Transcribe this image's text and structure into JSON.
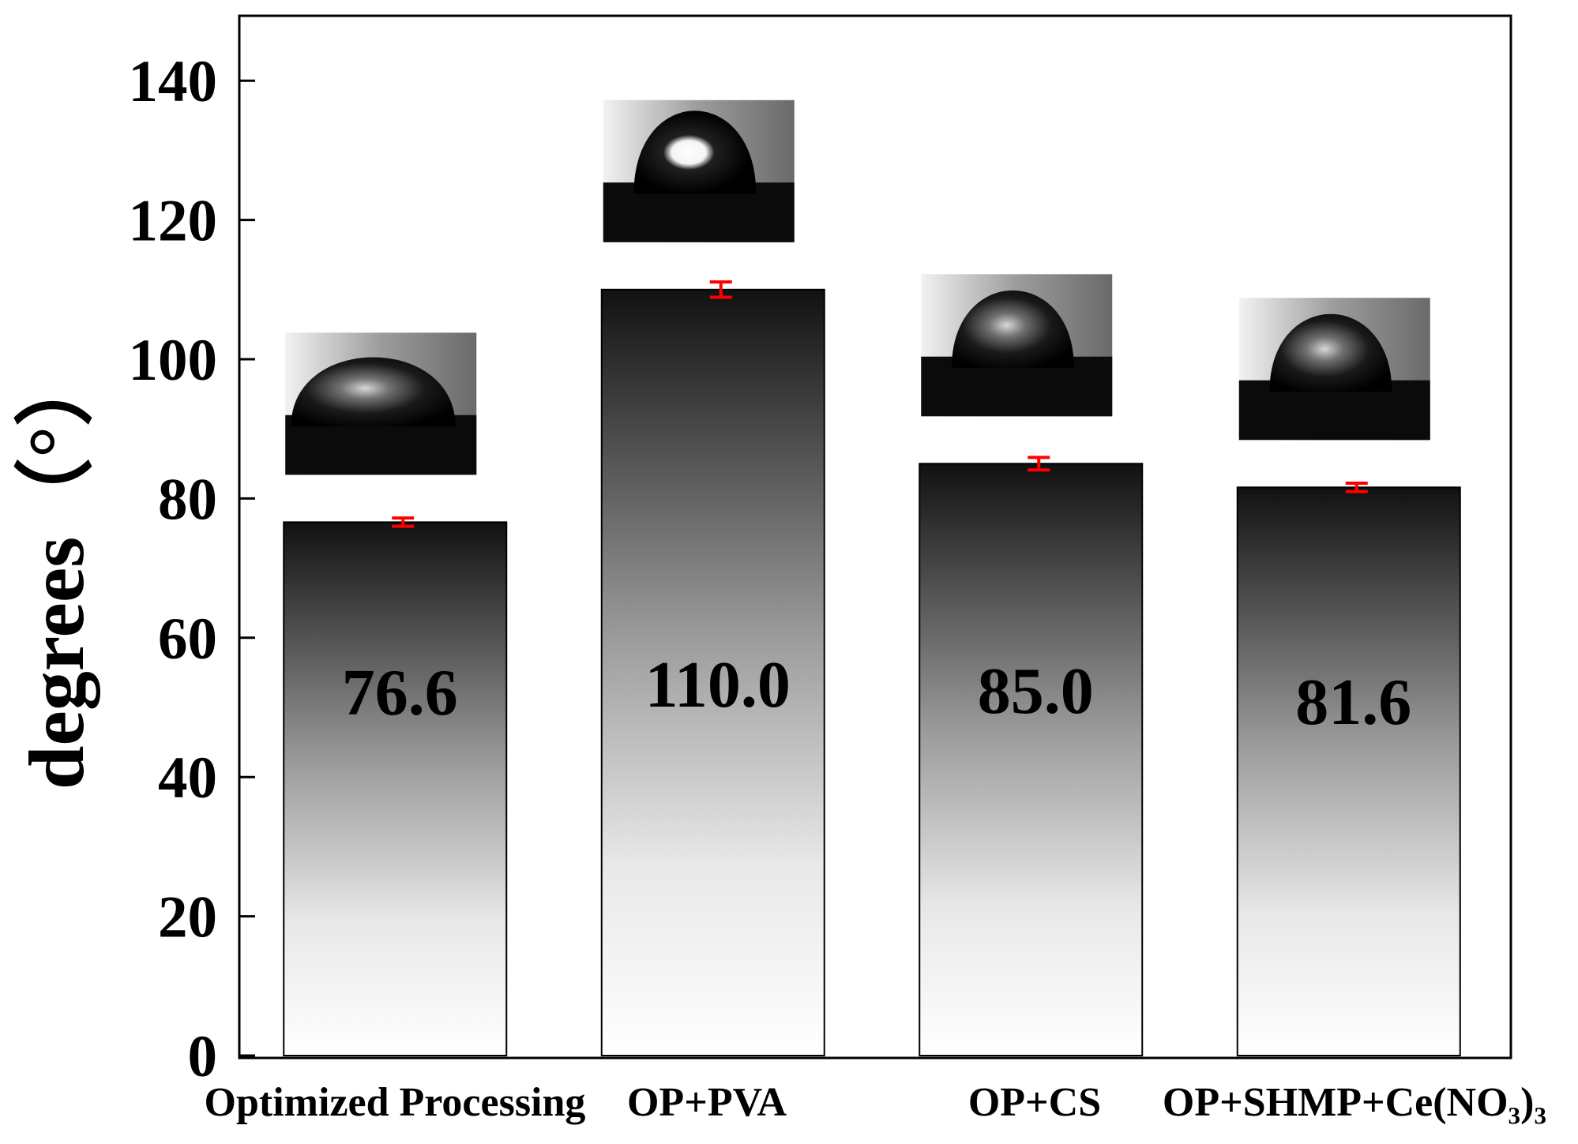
{
  "chart_data": {
    "type": "bar",
    "title": "",
    "xlabel": "",
    "ylabel": "degrees（°）",
    "ylim": [
      0,
      150
    ],
    "yticks": [
      0,
      20,
      40,
      60,
      80,
      100,
      120,
      140
    ],
    "grid": false,
    "categories": [
      "Optimized Processing",
      "OP+PVA",
      "OP+CS",
      "OP+SHMP+Ce(NO₃)₃"
    ],
    "values": [
      76.6,
      110.0,
      85.0,
      81.6
    ],
    "value_labels": [
      "76.6",
      "110.0",
      "85.0",
      "81.6"
    ],
    "error": [
      0.6,
      1.1,
      0.9,
      0.6
    ],
    "colors": {
      "bar_top": "#111111",
      "bar_bottom": "#ffffff",
      "error_bar": "#ff0000",
      "axis": "#000000"
    },
    "insets": [
      "droplet-photo",
      "droplet-photo",
      "droplet-photo",
      "droplet-photo"
    ]
  }
}
